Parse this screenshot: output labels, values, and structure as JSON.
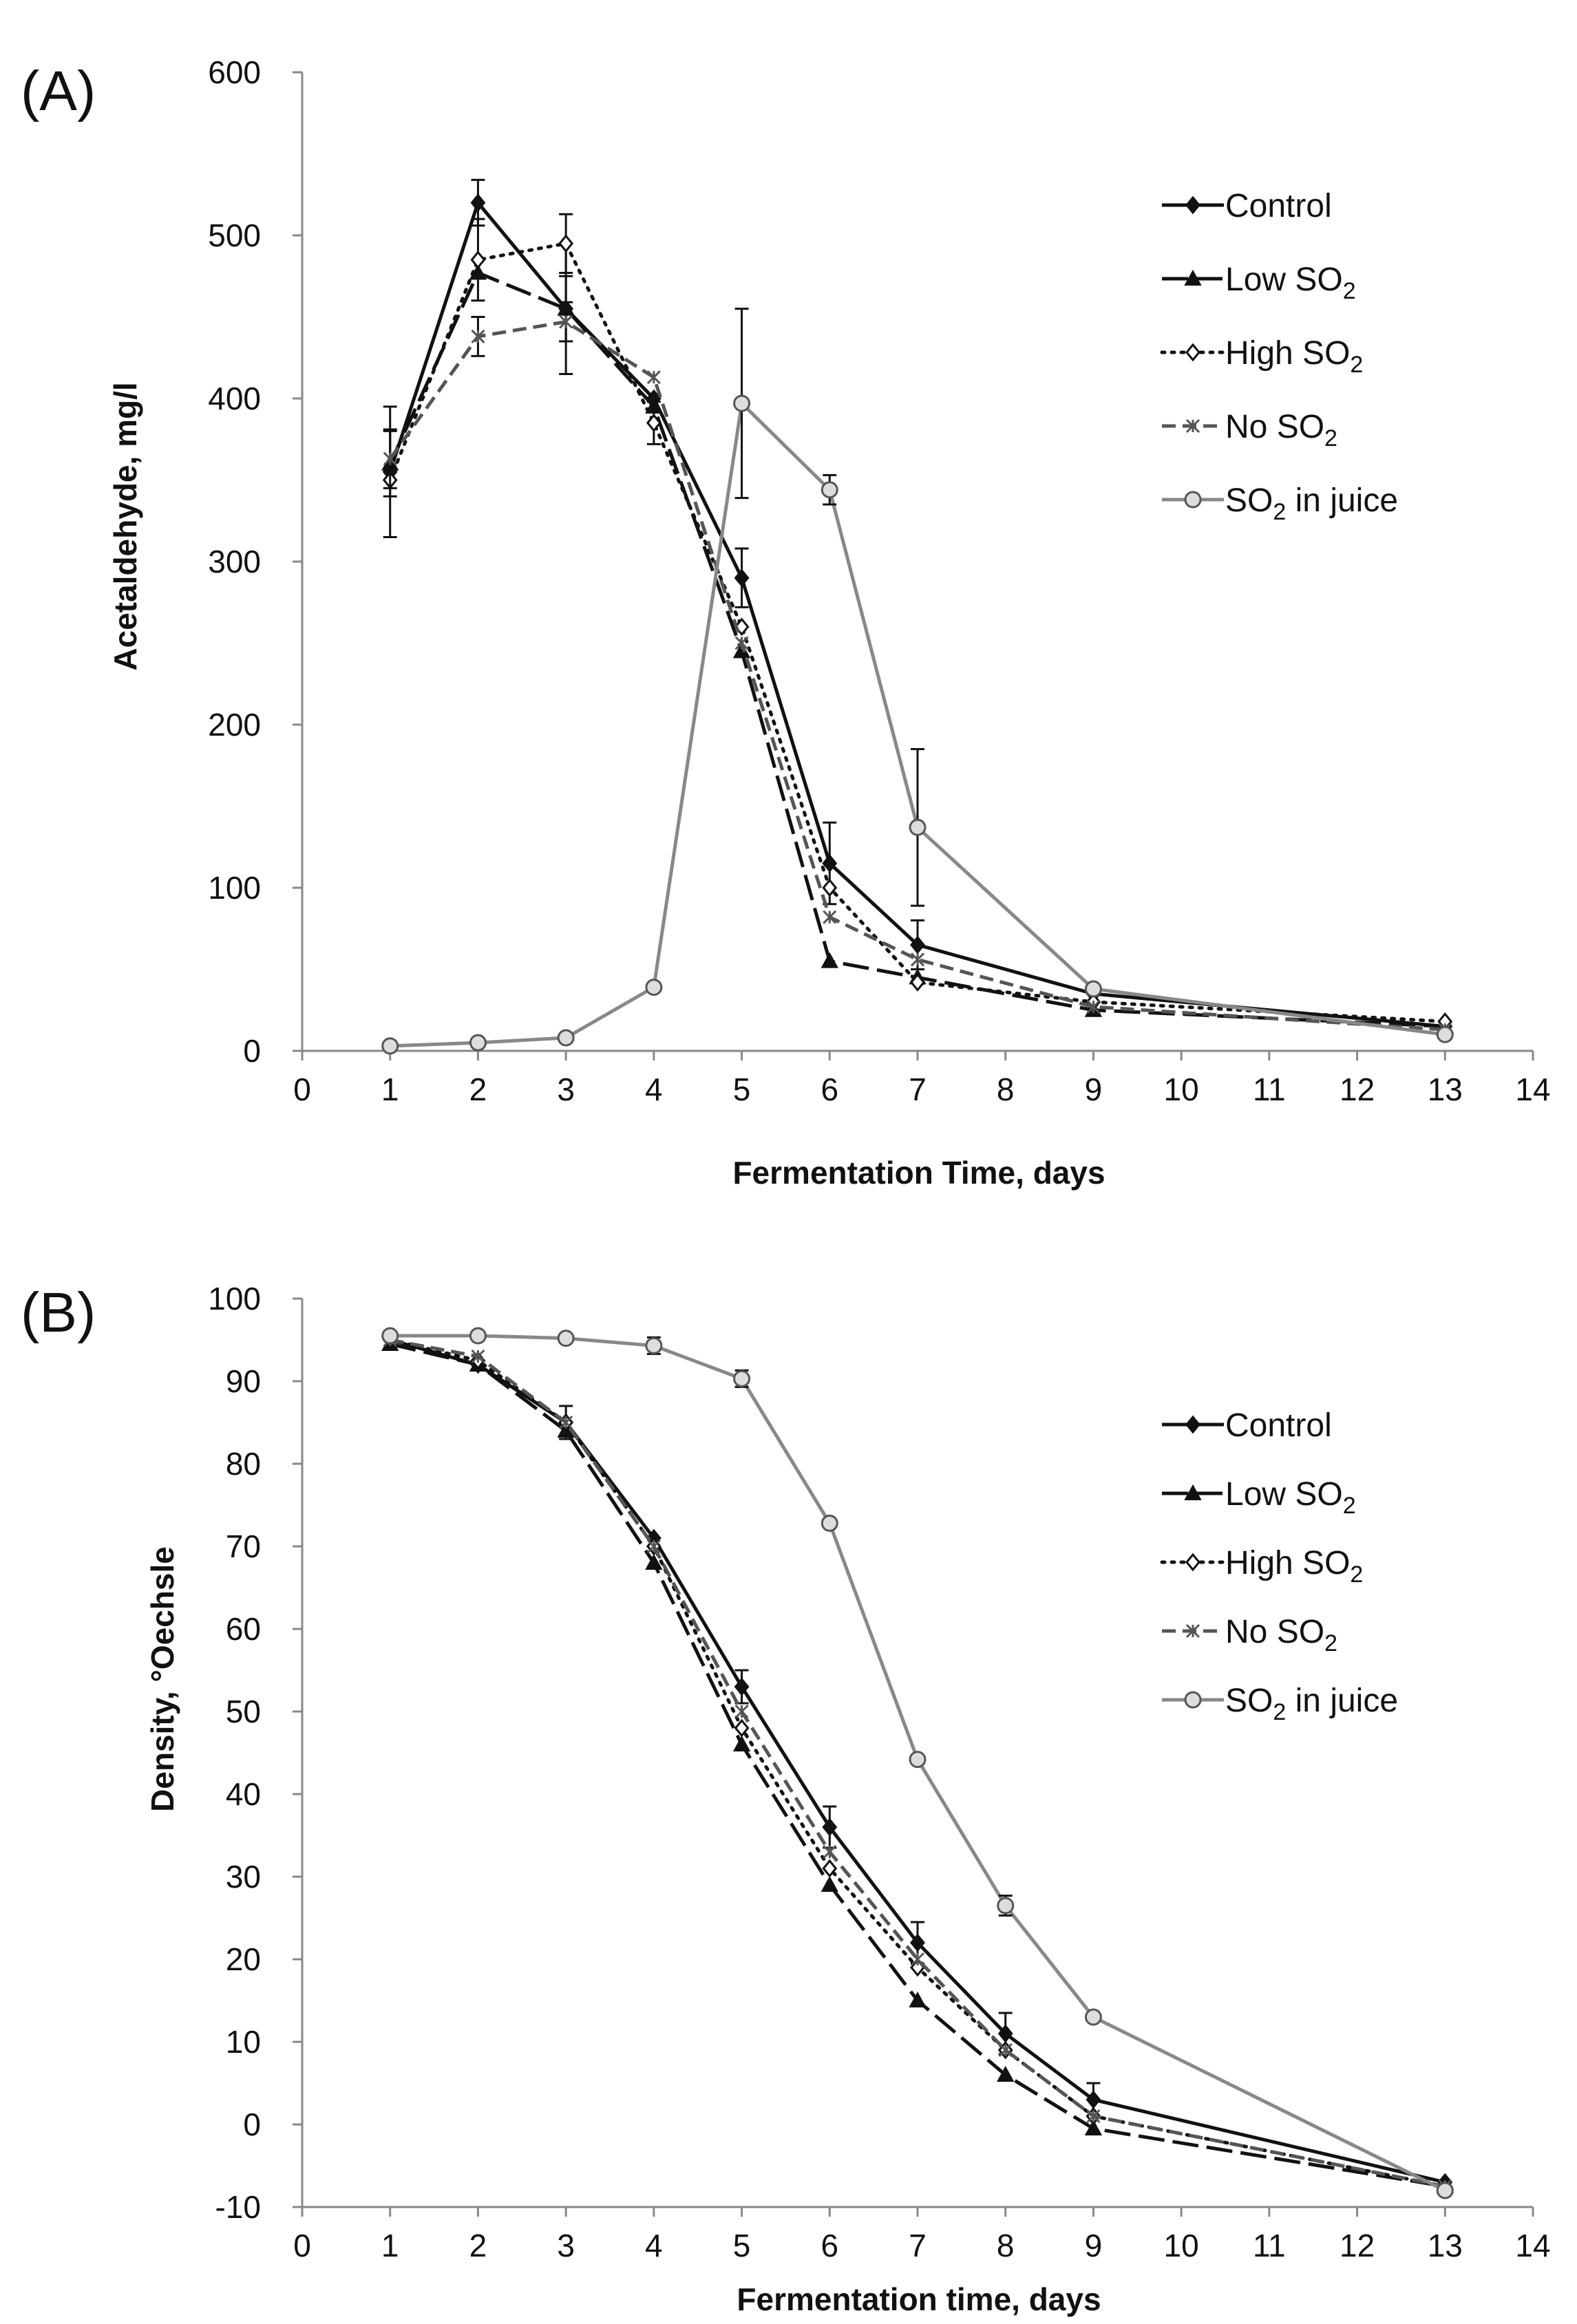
{
  "chart_data": [
    {
      "panel": "(A)",
      "type": "line",
      "xlabel": "Fermentation Time, days",
      "ylabel": "Acetaldehyde, mg/l",
      "xlim": [
        0,
        14
      ],
      "ylim": [
        0,
        600
      ],
      "xticks": [
        0,
        1,
        2,
        3,
        4,
        5,
        6,
        7,
        8,
        9,
        10,
        11,
        12,
        13,
        14
      ],
      "yticks": [
        0,
        100,
        200,
        300,
        400,
        500,
        600
      ],
      "legend_position": "top-right",
      "series": [
        {
          "name": "Control",
          "sub": "",
          "style": "solid",
          "color": "#111111",
          "marker": "diamond-filled",
          "x": [
            1,
            2,
            3,
            4,
            5,
            6,
            7,
            9,
            13
          ],
          "y": [
            355,
            520,
            455,
            400,
            290,
            115,
            65,
            35,
            15
          ],
          "err": [
            40,
            14,
            40,
            0,
            18,
            25,
            15,
            0,
            0
          ]
        },
        {
          "name": "Low SO",
          "sub": "2",
          "style": "longdash",
          "color": "#111111",
          "marker": "triangle",
          "x": [
            1,
            2,
            3,
            4,
            5,
            6,
            7,
            9,
            13
          ],
          "y": [
            360,
            477,
            455,
            395,
            245,
            55,
            45,
            25,
            15
          ],
          "err": [
            20,
            0,
            20,
            0,
            0,
            0,
            0,
            0,
            0
          ]
        },
        {
          "name": "High SO",
          "sub": "2",
          "style": "dotted",
          "color": "#111111",
          "marker": "diamond-open",
          "x": [
            1,
            2,
            3,
            4,
            5,
            6,
            7,
            9,
            13
          ],
          "y": [
            350,
            485,
            495,
            385,
            260,
            100,
            42,
            30,
            18
          ],
          "err": [
            0,
            25,
            18,
            13,
            0,
            0,
            0,
            0,
            0
          ]
        },
        {
          "name": "No SO",
          "sub": "2",
          "style": "dashed",
          "color": "#555555",
          "marker": "asterisk",
          "x": [
            1,
            2,
            3,
            4,
            5,
            6,
            7,
            9,
            13
          ],
          "y": [
            363,
            438,
            447,
            413,
            250,
            82,
            56,
            27,
            13
          ],
          "err": [
            18,
            12,
            12,
            0,
            0,
            0,
            0,
            0,
            0
          ]
        },
        {
          "name": "SO",
          "sub": "2",
          "suffix": " in juice",
          "style": "solid",
          "color": "#888888",
          "marker": "circle",
          "x": [
            1,
            2,
            3,
            4,
            5,
            6,
            7,
            9,
            13
          ],
          "y": [
            3,
            5,
            8,
            39,
            397,
            344,
            137,
            38,
            10
          ],
          "err": [
            0,
            0,
            0,
            0,
            58,
            9,
            48,
            0,
            0
          ]
        }
      ]
    },
    {
      "panel": "(B)",
      "type": "line",
      "xlabel": "Fermentation time, days",
      "ylabel": "Density,  °Oechsle",
      "xlim": [
        0,
        14
      ],
      "ylim": [
        -10,
        100
      ],
      "xticks": [
        0,
        1,
        2,
        3,
        4,
        5,
        6,
        7,
        8,
        9,
        10,
        11,
        12,
        13,
        14
      ],
      "yticks": [
        -10,
        0,
        10,
        20,
        30,
        40,
        50,
        60,
        70,
        80,
        90,
        100
      ],
      "legend_position": "right",
      "series": [
        {
          "name": "Control",
          "sub": "",
          "style": "solid",
          "color": "#111111",
          "marker": "diamond-filled",
          "x": [
            1,
            2,
            3,
            4,
            5,
            6,
            7,
            8,
            9,
            13
          ],
          "y": [
            95,
            92,
            85,
            71,
            53,
            36,
            22,
            11,
            3,
            -7
          ],
          "err": [
            0,
            0,
            2,
            0,
            2,
            2.5,
            2.5,
            2.5,
            2,
            0
          ]
        },
        {
          "name": "Low SO",
          "sub": "2",
          "style": "longdash",
          "color": "#111111",
          "marker": "triangle",
          "x": [
            1,
            2,
            3,
            4,
            5,
            6,
            7,
            8,
            9,
            13
          ],
          "y": [
            94.5,
            92,
            84,
            68,
            46,
            29,
            15,
            6,
            -0.5,
            -7.5
          ],
          "err": [
            0,
            0,
            0,
            0,
            0,
            0,
            0,
            0,
            0,
            0
          ]
        },
        {
          "name": "High SO",
          "sub": "2",
          "style": "dotted",
          "color": "#111111",
          "marker": "diamond-open",
          "x": [
            1,
            2,
            3,
            4,
            5,
            6,
            7,
            8,
            9,
            13
          ],
          "y": [
            95,
            92.5,
            85,
            70,
            48,
            31,
            19,
            9,
            1,
            -7.5
          ],
          "err": [
            0,
            0,
            0,
            0,
            0,
            0,
            0,
            0,
            0,
            0
          ]
        },
        {
          "name": "No SO",
          "sub": "2",
          "style": "dashed",
          "color": "#555555",
          "marker": "asterisk",
          "x": [
            1,
            2,
            3,
            4,
            5,
            6,
            7,
            8,
            9,
            13
          ],
          "y": [
            95,
            93,
            85,
            70,
            50,
            33,
            20,
            9,
            1,
            -7.5
          ],
          "err": [
            0,
            0,
            0,
            0,
            0,
            0,
            0,
            0,
            0,
            0
          ]
        },
        {
          "name": "SO",
          "sub": "2",
          "suffix": " in juice",
          "style": "solid",
          "color": "#888888",
          "marker": "circle",
          "x": [
            1,
            2,
            3,
            4,
            5,
            6,
            7,
            8,
            9,
            13
          ],
          "y": [
            95.5,
            95.5,
            95.2,
            94.3,
            90.3,
            72.8,
            44.2,
            26.5,
            13,
            -8
          ],
          "err": [
            0,
            0,
            0,
            1,
            1,
            0,
            0,
            1.2,
            0,
            0
          ]
        }
      ]
    }
  ]
}
